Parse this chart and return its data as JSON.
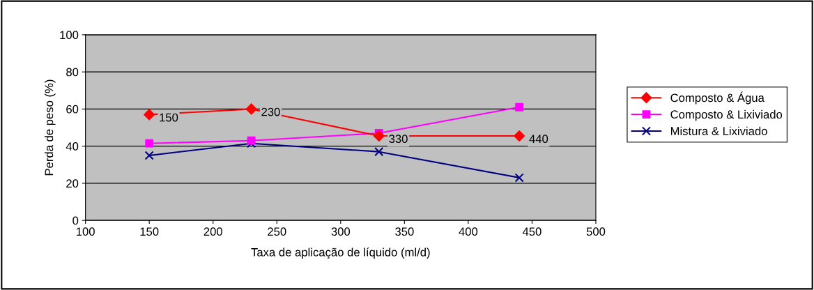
{
  "chart_data": {
    "type": "line",
    "xlabel": "Taxa de aplicação de líquido (ml/d)",
    "ylabel": "Perda de peso (%)",
    "xlim": [
      100,
      500
    ],
    "xticks": [
      100,
      150,
      200,
      250,
      300,
      350,
      400,
      450,
      500
    ],
    "ylim": [
      0,
      100
    ],
    "yticks": [
      0,
      20,
      40,
      60,
      80,
      100
    ],
    "grid": "y",
    "legend": "right",
    "series": [
      {
        "name": "Composto & Água",
        "color": "#ff0000",
        "marker": "diamond",
        "x": [
          150,
          230,
          330,
          440
        ],
        "values": [
          57,
          60,
          45.5,
          45.5
        ]
      },
      {
        "name": "Composto & Lixiviado",
        "color": "#ff00ff",
        "marker": "square",
        "x": [
          150,
          230,
          330,
          440
        ],
        "values": [
          41.5,
          43,
          47,
          61
        ]
      },
      {
        "name": "Mistura & Lixiviado",
        "color": "#000080",
        "marker": "cross",
        "x": [
          150,
          230,
          330,
          440
        ],
        "values": [
          35,
          41.5,
          37,
          23
        ]
      }
    ],
    "annotations": [
      {
        "text": "150",
        "x": 150,
        "y": 57
      },
      {
        "text": "230",
        "x": 230,
        "y": 60
      },
      {
        "text": "330",
        "x": 330,
        "y": 45.5
      },
      {
        "text": "440",
        "x": 440,
        "y": 45.5
      }
    ]
  }
}
